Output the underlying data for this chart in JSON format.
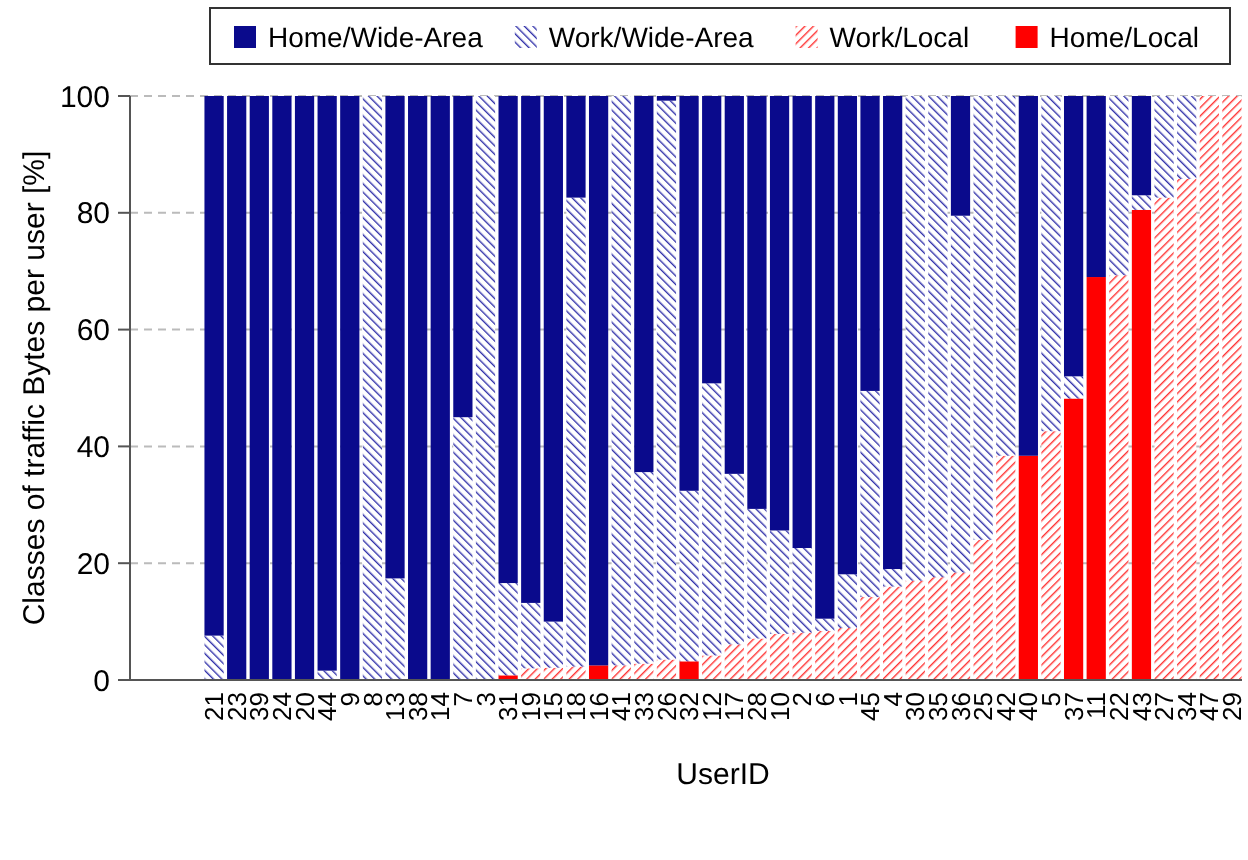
{
  "chart_data": {
    "type": "bar",
    "stacked": true,
    "xlabel": "UserID",
    "ylabel": "Classes of traffic Bytes per user [%]",
    "categories": [
      "21",
      "23",
      "39",
      "24",
      "20",
      "44",
      "9",
      "8",
      "13",
      "38",
      "14",
      "7",
      "3",
      "31",
      "19",
      "15",
      "18",
      "16",
      "41",
      "33",
      "26",
      "32",
      "12",
      "17",
      "28",
      "10",
      "2",
      "6",
      "1",
      "45",
      "4",
      "30",
      "35",
      "36",
      "25",
      "42",
      "40",
      "5",
      "37",
      "11",
      "22",
      "43",
      "27",
      "34",
      "47",
      "29"
    ],
    "series": [
      {
        "name": "Home/Local",
        "color": "#ff0000",
        "values": [
          0,
          0,
          0,
          0,
          0,
          0,
          0,
          0,
          0,
          0,
          0,
          0,
          0,
          0.8,
          0,
          0,
          0,
          2.5,
          0,
          0,
          0,
          3.2,
          0,
          0,
          0,
          0,
          0,
          0,
          0,
          0,
          0,
          0,
          0,
          0,
          0,
          0,
          38.4,
          0,
          48.2,
          69,
          0,
          80.5,
          0,
          0,
          0,
          0
        ]
      },
      {
        "name": "Work/Local",
        "color": "#ff3333",
        "values": [
          0,
          0,
          0,
          0,
          0,
          0,
          0,
          0,
          0,
          0,
          0,
          0,
          0,
          0,
          2,
          2.1,
          2.3,
          0,
          2.5,
          2.8,
          3.5,
          0,
          4.2,
          6.1,
          7.1,
          7.9,
          8.1,
          8.4,
          8.9,
          14.2,
          16,
          17,
          17.6,
          18.4,
          24,
          38.4,
          0,
          42.6,
          0,
          0,
          69.3,
          0,
          82.6,
          85.8,
          100,
          100
        ]
      },
      {
        "name": "Work/Wide-Area",
        "color": "#3333aa",
        "values": [
          7.6,
          0,
          0,
          0,
          0,
          1.6,
          0,
          100,
          17.4,
          0,
          0,
          45,
          100,
          15.8,
          11.2,
          7.9,
          80.3,
          0,
          97.5,
          32.8,
          95.7,
          29.2,
          46.6,
          29.2,
          22.2,
          17.7,
          14.5,
          2.1,
          9.2,
          35.3,
          3,
          83,
          82.4,
          61.1,
          76,
          61.6,
          0,
          57.4,
          3.8,
          0,
          30.7,
          2.5,
          17.4,
          14.2,
          0,
          0
        ]
      },
      {
        "name": "Home/Wide-Area",
        "color": "#0a0a8c",
        "values": [
          92.4,
          100,
          100,
          100,
          100,
          98.4,
          100,
          0,
          82.6,
          100,
          100,
          55,
          0,
          83.4,
          86.8,
          90,
          17.4,
          97.5,
          0,
          64.4,
          0.8,
          67.6,
          49.2,
          64.7,
          70.7,
          74.4,
          77.4,
          89.5,
          81.9,
          50.5,
          81,
          0,
          0,
          20.5,
          0,
          0,
          61.6,
          0,
          48,
          31,
          0,
          17,
          0,
          0,
          0,
          0
        ]
      }
    ],
    "ylim": [
      0,
      100
    ],
    "yticks": [
      0,
      20,
      40,
      60,
      80,
      100
    ],
    "grid": "y",
    "legend": "top"
  }
}
